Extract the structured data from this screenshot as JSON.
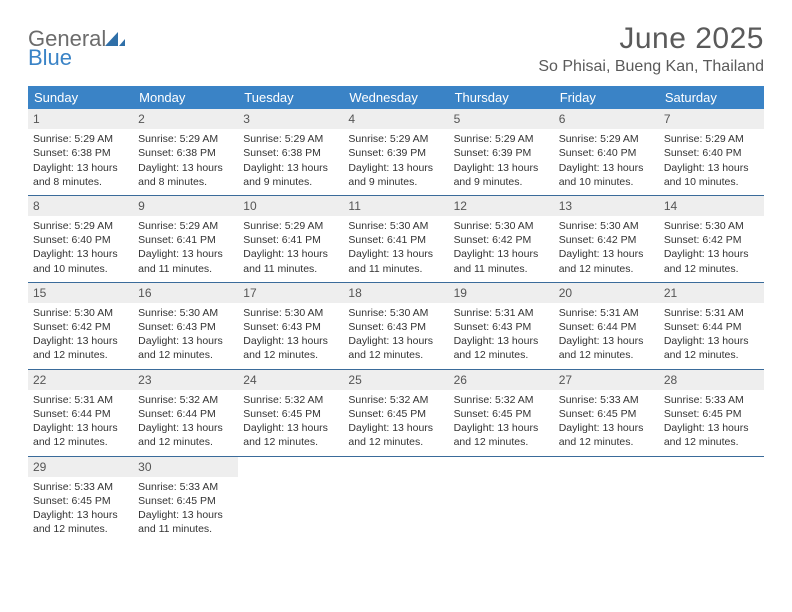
{
  "logo": {
    "word1": "General",
    "word2": "Blue"
  },
  "title": "June 2025",
  "subtitle": "So Phisai, Bueng Kan, Thailand",
  "colors": {
    "header_bg": "#3a83c6",
    "header_text": "#ffffff",
    "daynum_bg": "#eeeeee",
    "daynum_text": "#555555",
    "week_border": "#3a6b9a",
    "body_text": "#333333",
    "title_text": "#5a5a5a"
  },
  "dow": [
    "Sunday",
    "Monday",
    "Tuesday",
    "Wednesday",
    "Thursday",
    "Friday",
    "Saturday"
  ],
  "days": [
    {
      "n": "1",
      "sr": "5:29 AM",
      "ss": "6:38 PM",
      "dh": "13",
      "dm": "8"
    },
    {
      "n": "2",
      "sr": "5:29 AM",
      "ss": "6:38 PM",
      "dh": "13",
      "dm": "8"
    },
    {
      "n": "3",
      "sr": "5:29 AM",
      "ss": "6:38 PM",
      "dh": "13",
      "dm": "9"
    },
    {
      "n": "4",
      "sr": "5:29 AM",
      "ss": "6:39 PM",
      "dh": "13",
      "dm": "9"
    },
    {
      "n": "5",
      "sr": "5:29 AM",
      "ss": "6:39 PM",
      "dh": "13",
      "dm": "9"
    },
    {
      "n": "6",
      "sr": "5:29 AM",
      "ss": "6:40 PM",
      "dh": "13",
      "dm": "10"
    },
    {
      "n": "7",
      "sr": "5:29 AM",
      "ss": "6:40 PM",
      "dh": "13",
      "dm": "10"
    },
    {
      "n": "8",
      "sr": "5:29 AM",
      "ss": "6:40 PM",
      "dh": "13",
      "dm": "10"
    },
    {
      "n": "9",
      "sr": "5:29 AM",
      "ss": "6:41 PM",
      "dh": "13",
      "dm": "11"
    },
    {
      "n": "10",
      "sr": "5:29 AM",
      "ss": "6:41 PM",
      "dh": "13",
      "dm": "11"
    },
    {
      "n": "11",
      "sr": "5:30 AM",
      "ss": "6:41 PM",
      "dh": "13",
      "dm": "11"
    },
    {
      "n": "12",
      "sr": "5:30 AM",
      "ss": "6:42 PM",
      "dh": "13",
      "dm": "11"
    },
    {
      "n": "13",
      "sr": "5:30 AM",
      "ss": "6:42 PM",
      "dh": "13",
      "dm": "12"
    },
    {
      "n": "14",
      "sr": "5:30 AM",
      "ss": "6:42 PM",
      "dh": "13",
      "dm": "12"
    },
    {
      "n": "15",
      "sr": "5:30 AM",
      "ss": "6:42 PM",
      "dh": "13",
      "dm": "12"
    },
    {
      "n": "16",
      "sr": "5:30 AM",
      "ss": "6:43 PM",
      "dh": "13",
      "dm": "12"
    },
    {
      "n": "17",
      "sr": "5:30 AM",
      "ss": "6:43 PM",
      "dh": "13",
      "dm": "12"
    },
    {
      "n": "18",
      "sr": "5:30 AM",
      "ss": "6:43 PM",
      "dh": "13",
      "dm": "12"
    },
    {
      "n": "19",
      "sr": "5:31 AM",
      "ss": "6:43 PM",
      "dh": "13",
      "dm": "12"
    },
    {
      "n": "20",
      "sr": "5:31 AM",
      "ss": "6:44 PM",
      "dh": "13",
      "dm": "12"
    },
    {
      "n": "21",
      "sr": "5:31 AM",
      "ss": "6:44 PM",
      "dh": "13",
      "dm": "12"
    },
    {
      "n": "22",
      "sr": "5:31 AM",
      "ss": "6:44 PM",
      "dh": "13",
      "dm": "12"
    },
    {
      "n": "23",
      "sr": "5:32 AM",
      "ss": "6:44 PM",
      "dh": "13",
      "dm": "12"
    },
    {
      "n": "24",
      "sr": "5:32 AM",
      "ss": "6:45 PM",
      "dh": "13",
      "dm": "12"
    },
    {
      "n": "25",
      "sr": "5:32 AM",
      "ss": "6:45 PM",
      "dh": "13",
      "dm": "12"
    },
    {
      "n": "26",
      "sr": "5:32 AM",
      "ss": "6:45 PM",
      "dh": "13",
      "dm": "12"
    },
    {
      "n": "27",
      "sr": "5:33 AM",
      "ss": "6:45 PM",
      "dh": "13",
      "dm": "12"
    },
    {
      "n": "28",
      "sr": "5:33 AM",
      "ss": "6:45 PM",
      "dh": "13",
      "dm": "12"
    },
    {
      "n": "29",
      "sr": "5:33 AM",
      "ss": "6:45 PM",
      "dh": "13",
      "dm": "12"
    },
    {
      "n": "30",
      "sr": "5:33 AM",
      "ss": "6:45 PM",
      "dh": "13",
      "dm": "11"
    }
  ],
  "labels": {
    "sunrise": "Sunrise:",
    "sunset": "Sunset:",
    "daylight": "Daylight:",
    "hours": "hours",
    "and": "and",
    "minutes": "minutes."
  },
  "layout": {
    "columns": 7,
    "first_day_column": 0,
    "weeks": 5
  }
}
